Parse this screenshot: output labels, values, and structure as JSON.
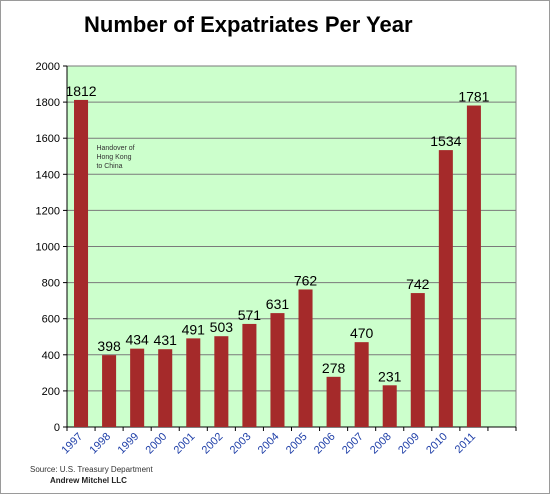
{
  "chart_data": {
    "type": "bar",
    "title": "Number of Expatriates Per Year",
    "categories": [
      "1997",
      "1998",
      "1999",
      "2000",
      "2001",
      "2002",
      "2003",
      "2004",
      "2005",
      "2006",
      "2007",
      "2008",
      "2009",
      "2010",
      "2011"
    ],
    "values": [
      1812,
      398,
      434,
      431,
      491,
      503,
      571,
      631,
      762,
      278,
      470,
      231,
      742,
      1534,
      1781
    ],
    "data_labels": [
      "1812",
      "398",
      "434",
      "431",
      "491",
      "503",
      "571",
      "631",
      "762",
      "278",
      "470",
      "231",
      "742",
      "1534",
      "1781"
    ],
    "y_ticks": [
      "0",
      "200",
      "400",
      "600",
      "800",
      "1000",
      "1200",
      "1400",
      "1600",
      "1800",
      "2000"
    ],
    "ylim": [
      0,
      2000
    ],
    "xlabel": "",
    "ylabel": "",
    "grid": true,
    "annotation": [
      "Handover of",
      "Hong Kong",
      "to China"
    ],
    "colors": {
      "bar": "#a52a2a",
      "plot_background": "#ccffcc",
      "gridline": "#7a7a7a",
      "x_tick_text": "#1f3fa8"
    }
  },
  "footer": {
    "source": "Source: U.S. Treasury Department",
    "author": "Andrew Mitchel LLC"
  }
}
